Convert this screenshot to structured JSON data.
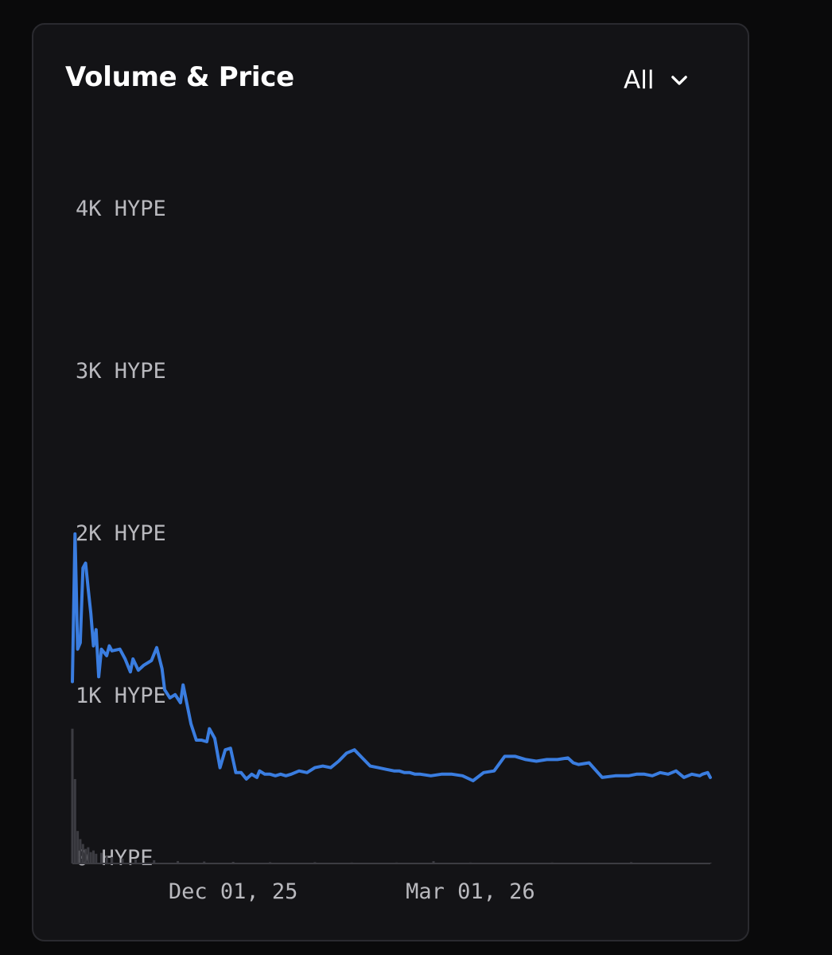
{
  "card": {
    "title": "Volume & Price",
    "range_selector": {
      "selected": "All",
      "icon": "chevron-down-icon"
    }
  },
  "chart_data": {
    "type": "line",
    "title": "Volume & Price",
    "xlabel": "",
    "ylabel": "",
    "x_tick_labels": [
      "Dec 01, 25",
      "Mar 01, 26"
    ],
    "x_ticks": [
      "2025-12-01",
      "2026-03-01"
    ],
    "xlim": [
      "2025-10-01",
      "2026-05-31"
    ],
    "y_tick_labels": [
      "0 HYPE",
      "1K HYPE",
      "2K HYPE",
      "3K HYPE",
      "4K HYPE"
    ],
    "y_ticks": [
      0,
      1000,
      2000,
      3000,
      4000
    ],
    "ylim": [
      0,
      4000
    ],
    "grid": false,
    "colors": {
      "price_line": "#3a7de0",
      "volume_bars": "#3c3c42"
    },
    "series": [
      {
        "kind": "line",
        "x": [
          "2025-10-01",
          "2025-10-02",
          "2025-10-03",
          "2025-10-04",
          "2025-10-05",
          "2025-10-06",
          "2025-10-07",
          "2025-10-08",
          "2025-10-09",
          "2025-10-10",
          "2025-10-11",
          "2025-10-12",
          "2025-10-14",
          "2025-10-15",
          "2025-10-16",
          "2025-10-19",
          "2025-10-21",
          "2025-10-23",
          "2025-10-24",
          "2025-10-26",
          "2025-10-28",
          "2025-10-31",
          "2025-11-02",
          "2025-11-04",
          "2025-11-05",
          "2025-11-07",
          "2025-11-09",
          "2025-11-11",
          "2025-11-12",
          "2025-11-15",
          "2025-11-17",
          "2025-11-19",
          "2025-11-21",
          "2025-11-22",
          "2025-11-24",
          "2025-11-26",
          "2025-11-28",
          "2025-11-30",
          "2025-12-02",
          "2025-12-04",
          "2025-12-06",
          "2025-12-08",
          "2025-12-10",
          "2025-12-11",
          "2025-12-13",
          "2025-12-15",
          "2025-12-17",
          "2025-12-19",
          "2025-12-21",
          "2025-12-23",
          "2025-12-26",
          "2025-12-29",
          "2026-01-01",
          "2026-01-04",
          "2026-01-07",
          "2026-01-10",
          "2026-01-13",
          "2026-01-16",
          "2026-01-19",
          "2026-01-22",
          "2026-01-25",
          "2026-01-28",
          "2026-01-31",
          "2026-02-02",
          "2026-02-04",
          "2026-02-06",
          "2026-02-08",
          "2026-02-10",
          "2026-02-14",
          "2026-02-18",
          "2026-02-22",
          "2026-02-26",
          "2026-03-02",
          "2026-03-06",
          "2026-03-10",
          "2026-03-14",
          "2026-03-18",
          "2026-03-22",
          "2026-03-26",
          "2026-03-30",
          "2026-04-03",
          "2026-04-07",
          "2026-04-09",
          "2026-04-11",
          "2026-04-15",
          "2026-04-20",
          "2026-04-25",
          "2026-04-30",
          "2026-05-03",
          "2026-05-06",
          "2026-05-09",
          "2026-05-12",
          "2026-05-15",
          "2026-05-18",
          "2026-05-21",
          "2026-05-24",
          "2026-05-27",
          "2026-05-28",
          "2026-05-30",
          "2026-05-31"
        ],
        "y": [
          1120,
          2030,
          1320,
          1360,
          1820,
          1850,
          1690,
          1540,
          1340,
          1440,
          1150,
          1320,
          1280,
          1340,
          1310,
          1320,
          1260,
          1180,
          1260,
          1190,
          1220,
          1250,
          1330,
          1200,
          1070,
          1020,
          1040,
          990,
          1100,
          860,
          760,
          760,
          750,
          830,
          770,
          590,
          700,
          710,
          560,
          560,
          520,
          550,
          530,
          570,
          550,
          550,
          540,
          550,
          540,
          550,
          570,
          560,
          590,
          600,
          590,
          630,
          680,
          700,
          650,
          600,
          590,
          580,
          570,
          570,
          560,
          560,
          550,
          550,
          540,
          550,
          550,
          540,
          510,
          560,
          570,
          660,
          660,
          640,
          630,
          640,
          640,
          650,
          620,
          610,
          620,
          530,
          540,
          540,
          550,
          550,
          540,
          560,
          550,
          570,
          530,
          550,
          540,
          550,
          560,
          530
        ]
      },
      {
        "kind": "bar",
        "description": "daily volume",
        "x": [
          "2025-10-01",
          "2025-10-02",
          "2025-10-03",
          "2025-10-04",
          "2025-10-05",
          "2025-10-06",
          "2025-10-07",
          "2025-10-08",
          "2025-10-09",
          "2025-10-10",
          "2025-10-12",
          "2025-10-14",
          "2025-10-16",
          "2025-10-20",
          "2025-10-25",
          "2025-11-01",
          "2025-11-10",
          "2025-11-20",
          "2025-12-01",
          "2025-12-15",
          "2026-01-01",
          "2026-01-15",
          "2026-02-01",
          "2026-02-15",
          "2026-03-01",
          "2026-03-15",
          "2026-04-01",
          "2026-04-15",
          "2026-05-01",
          "2026-05-15",
          "2026-05-31"
        ],
        "y": [
          830,
          520,
          200,
          150,
          120,
          90,
          100,
          70,
          80,
          60,
          65,
          45,
          40,
          30,
          25,
          20,
          15,
          12,
          10,
          8,
          8,
          6,
          6,
          14,
          6,
          5,
          6,
          5,
          8,
          5,
          5
        ]
      }
    ]
  }
}
